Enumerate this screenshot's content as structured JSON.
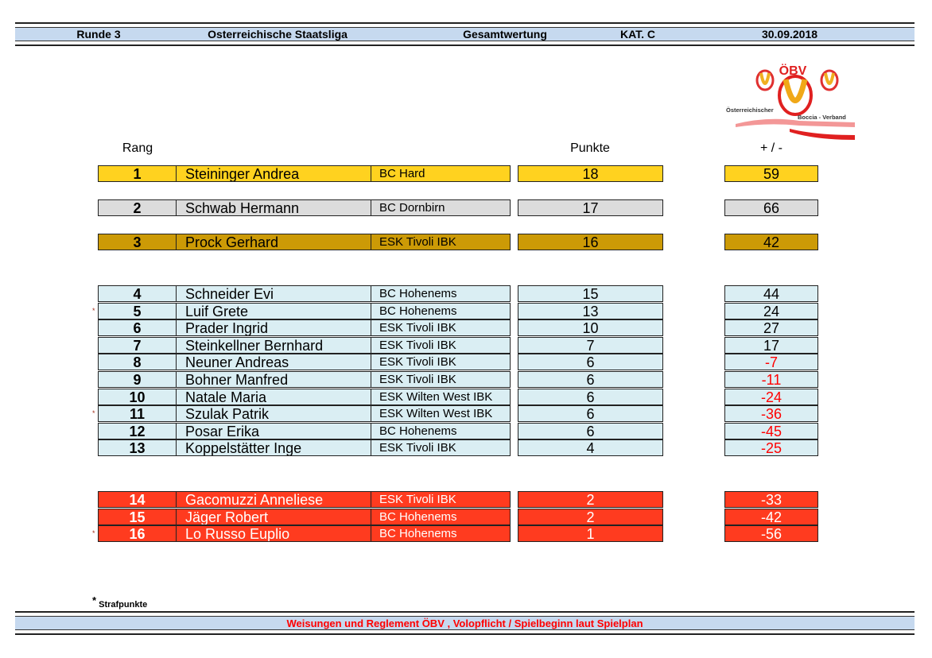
{
  "header": {
    "round": "Runde 3",
    "league": "Osterreichische Staatsliga",
    "type": "Gesamtwertung",
    "category": "KAT. C",
    "date": "30.09.2018"
  },
  "logo": {
    "title": "ÖBV",
    "line1": "Österreichischer",
    "line2": "Boccia - Verband"
  },
  "columns": {
    "rank": "Rang",
    "points": "Punkte",
    "diff": "+ / -"
  },
  "colors": {
    "gold": "#FFD21F",
    "silver": "#DCDCDC",
    "bronze": "#CC9A06",
    "middle": "#DAEEF3",
    "relegation": "#FF3B1F",
    "negative": "#FF0000"
  },
  "ranking": [
    {
      "rank": "1",
      "name": "Steininger Andrea",
      "club": "BC Hard",
      "points": "18",
      "diff": "59",
      "tier": "gold",
      "penalty": false
    },
    {
      "rank": "2",
      "name": "Schwab Hermann",
      "club": "BC Dornbirn",
      "points": "17",
      "diff": "66",
      "tier": "silver",
      "penalty": false
    },
    {
      "rank": "3",
      "name": "Prock Gerhard",
      "club": "ESK Tivoli IBK",
      "points": "16",
      "diff": "42",
      "tier": "bronze",
      "penalty": false
    },
    {
      "rank": "4",
      "name": "Schneider Evi",
      "club": "BC Hohenems",
      "points": "15",
      "diff": "44",
      "tier": "middle",
      "penalty": false
    },
    {
      "rank": "5",
      "name": "Luif Grete",
      "club": "BC Hohenems",
      "points": "13",
      "diff": "24",
      "tier": "middle",
      "penalty": true
    },
    {
      "rank": "6",
      "name": "Prader Ingrid",
      "club": "ESK Tivoli IBK",
      "points": "10",
      "diff": "27",
      "tier": "middle",
      "penalty": false
    },
    {
      "rank": "7",
      "name": "Steinkellner Bernhard",
      "club": "ESK Tivoli IBK",
      "points": "7",
      "diff": "17",
      "tier": "middle",
      "penalty": false
    },
    {
      "rank": "8",
      "name": "Neuner Andreas",
      "club": "ESK Tivoli IBK",
      "points": "6",
      "diff": "-7",
      "tier": "middle",
      "penalty": false
    },
    {
      "rank": "9",
      "name": "Bohner Manfred",
      "club": "ESK Tivoli IBK",
      "points": "6",
      "diff": "-11",
      "tier": "middle",
      "penalty": false
    },
    {
      "rank": "10",
      "name": "Natale Maria",
      "club": "ESK Wilten West IBK",
      "points": "6",
      "diff": "-24",
      "tier": "middle",
      "penalty": false
    },
    {
      "rank": "11",
      "name": "Szulak Patrik",
      "club": "ESK Wilten West IBK",
      "points": "6",
      "diff": "-36",
      "tier": "middle",
      "penalty": true
    },
    {
      "rank": "12",
      "name": "Posar Erika",
      "club": "BC Hohenems",
      "points": "6",
      "diff": "-45",
      "tier": "middle",
      "penalty": false
    },
    {
      "rank": "13",
      "name": "Koppelstätter Inge",
      "club": "ESK Tivoli IBK",
      "points": "4",
      "diff": "-25",
      "tier": "middle",
      "penalty": false
    },
    {
      "rank": "14",
      "name": "Gacomuzzi Anneliese",
      "club": "ESK Tivoli IBK",
      "points": "2",
      "diff": "-33",
      "tier": "relegation",
      "penalty": false
    },
    {
      "rank": "15",
      "name": "Jäger Robert",
      "club": "BC Hohenems",
      "points": "2",
      "diff": "-42",
      "tier": "relegation",
      "penalty": false
    },
    {
      "rank": "16",
      "name": "Lo Russo Euplio",
      "club": "BC Hohenems",
      "points": "1",
      "diff": "-56",
      "tier": "relegation",
      "penalty": true
    }
  ],
  "legend": {
    "star": "*",
    "text": "Strafpunkte"
  },
  "footer": {
    "text": "Weisungen und Reglement ÖBV , Volopflicht / Spielbeginn laut Spielplan"
  }
}
